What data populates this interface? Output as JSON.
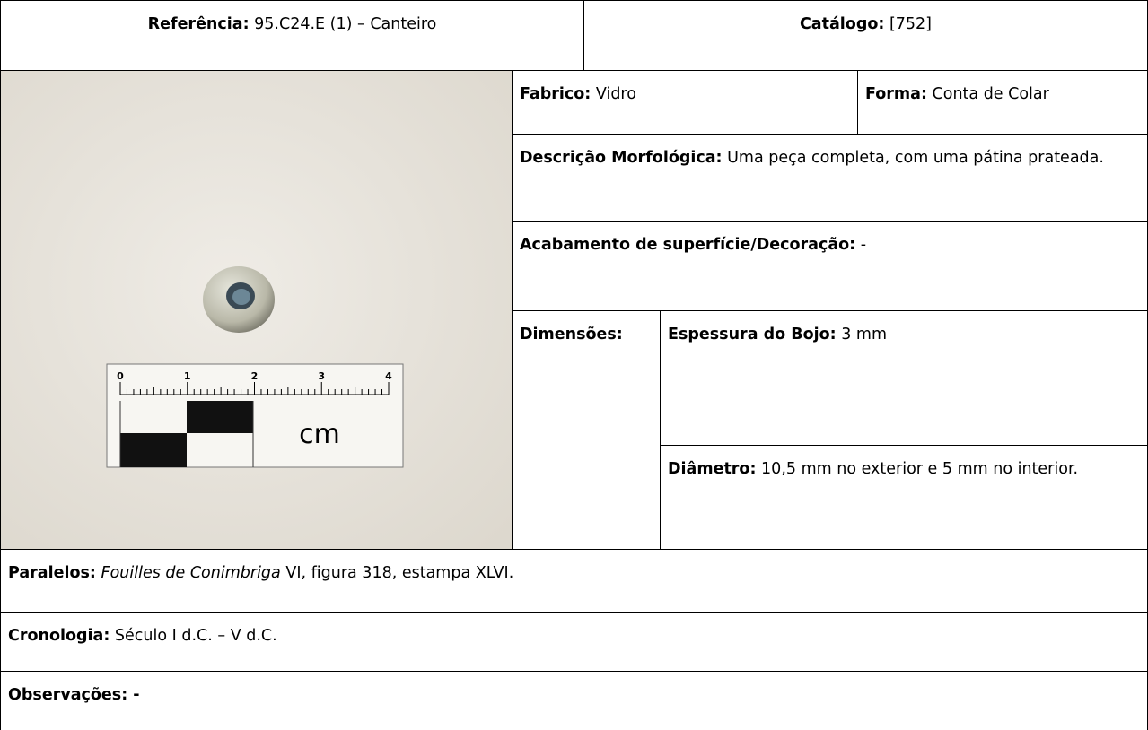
{
  "header": {
    "reference_label": "Referência:",
    "reference_value": "95.C24.E (1) – Canteiro",
    "catalog_label": "Catálogo:",
    "catalog_value": "[752]"
  },
  "photo": {
    "scale_labels": [
      "0",
      "1",
      "2",
      "3",
      "4"
    ],
    "unit": "cm"
  },
  "fields": {
    "fabrico": {
      "label": "Fabrico:",
      "value": "Vidro"
    },
    "forma": {
      "label": "Forma:",
      "value": "Conta de Colar"
    },
    "descricao": {
      "label": "Descrição Morfológica:",
      "value": "Uma peça completa, com uma pátina prateada."
    },
    "acabamento": {
      "label": "Acabamento de superfície/Decoração:",
      "value": "-"
    },
    "dimensoes": {
      "label": "Dimensões:"
    },
    "espessura": {
      "label": "Espessura do Bojo:",
      "value": "3 mm"
    },
    "diametro": {
      "label": "Diâmetro:",
      "value": "10,5 mm no exterior e 5 mm no interior."
    },
    "paralelos": {
      "label": "Paralelos:",
      "italic": "Fouilles de Conimbriga",
      "value": "VI, figura 318, estampa XLVI."
    },
    "cronologia": {
      "label": "Cronologia:",
      "value": "Século I d.C. – V d.C."
    },
    "observacoes": {
      "label": "Observações: -"
    }
  }
}
